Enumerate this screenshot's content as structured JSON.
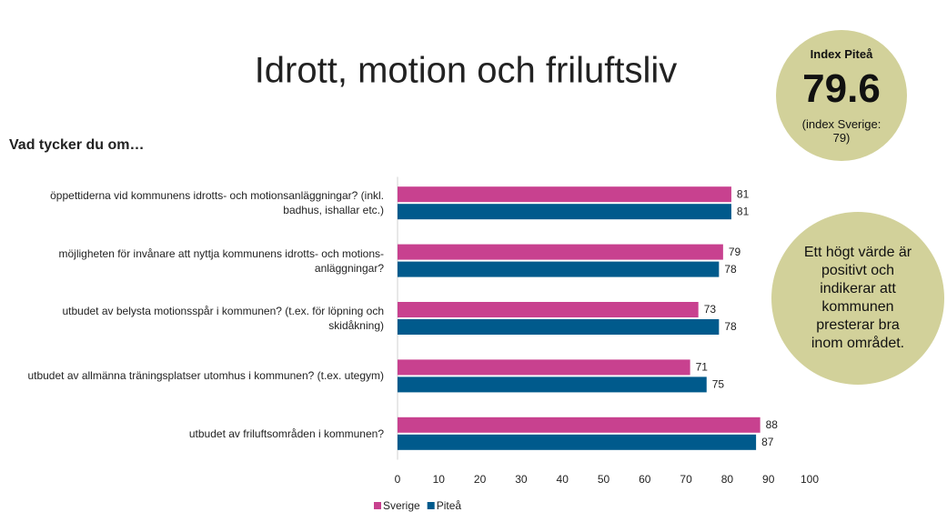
{
  "chart_data": {
    "type": "hbar",
    "title": "Idrott, motion och friluftsliv",
    "subtitle": "Vad tycker du om…",
    "categories": [
      "öppettiderna vid kommunens idrotts- och motionsanläggningar? (inkl. badhus, ishallar etc.)",
      "möjligheten för invånare att nyttja kommunens idrotts- och motions-anläggningar?",
      "utbudet av belysta motionsspår i kommunen? (t.ex. för löpning och skidåkning)",
      "utbudet av allmänna träningsplatser utomhus i kommunen? (t.ex. utegym)",
      "utbudet av friluftsområden i kommunen?"
    ],
    "series": [
      {
        "name": "Sverige",
        "color": "#c8418f",
        "values": [
          81,
          79,
          73,
          71,
          88
        ]
      },
      {
        "name": "Piteå",
        "color": "#005a8c",
        "values": [
          81,
          78,
          78,
          75,
          87
        ]
      }
    ],
    "xlim": [
      0,
      100
    ],
    "xticks": [
      0,
      10,
      20,
      30,
      40,
      50,
      60,
      70,
      80,
      90,
      100
    ],
    "legend": "bottom",
    "index_label": "Index Piteå",
    "index_value": 79.6,
    "index_note": "(index Sverige: 79)",
    "note": "Ett högt värde är positivt och indikerar att kommunen presterar bra inom området."
  }
}
